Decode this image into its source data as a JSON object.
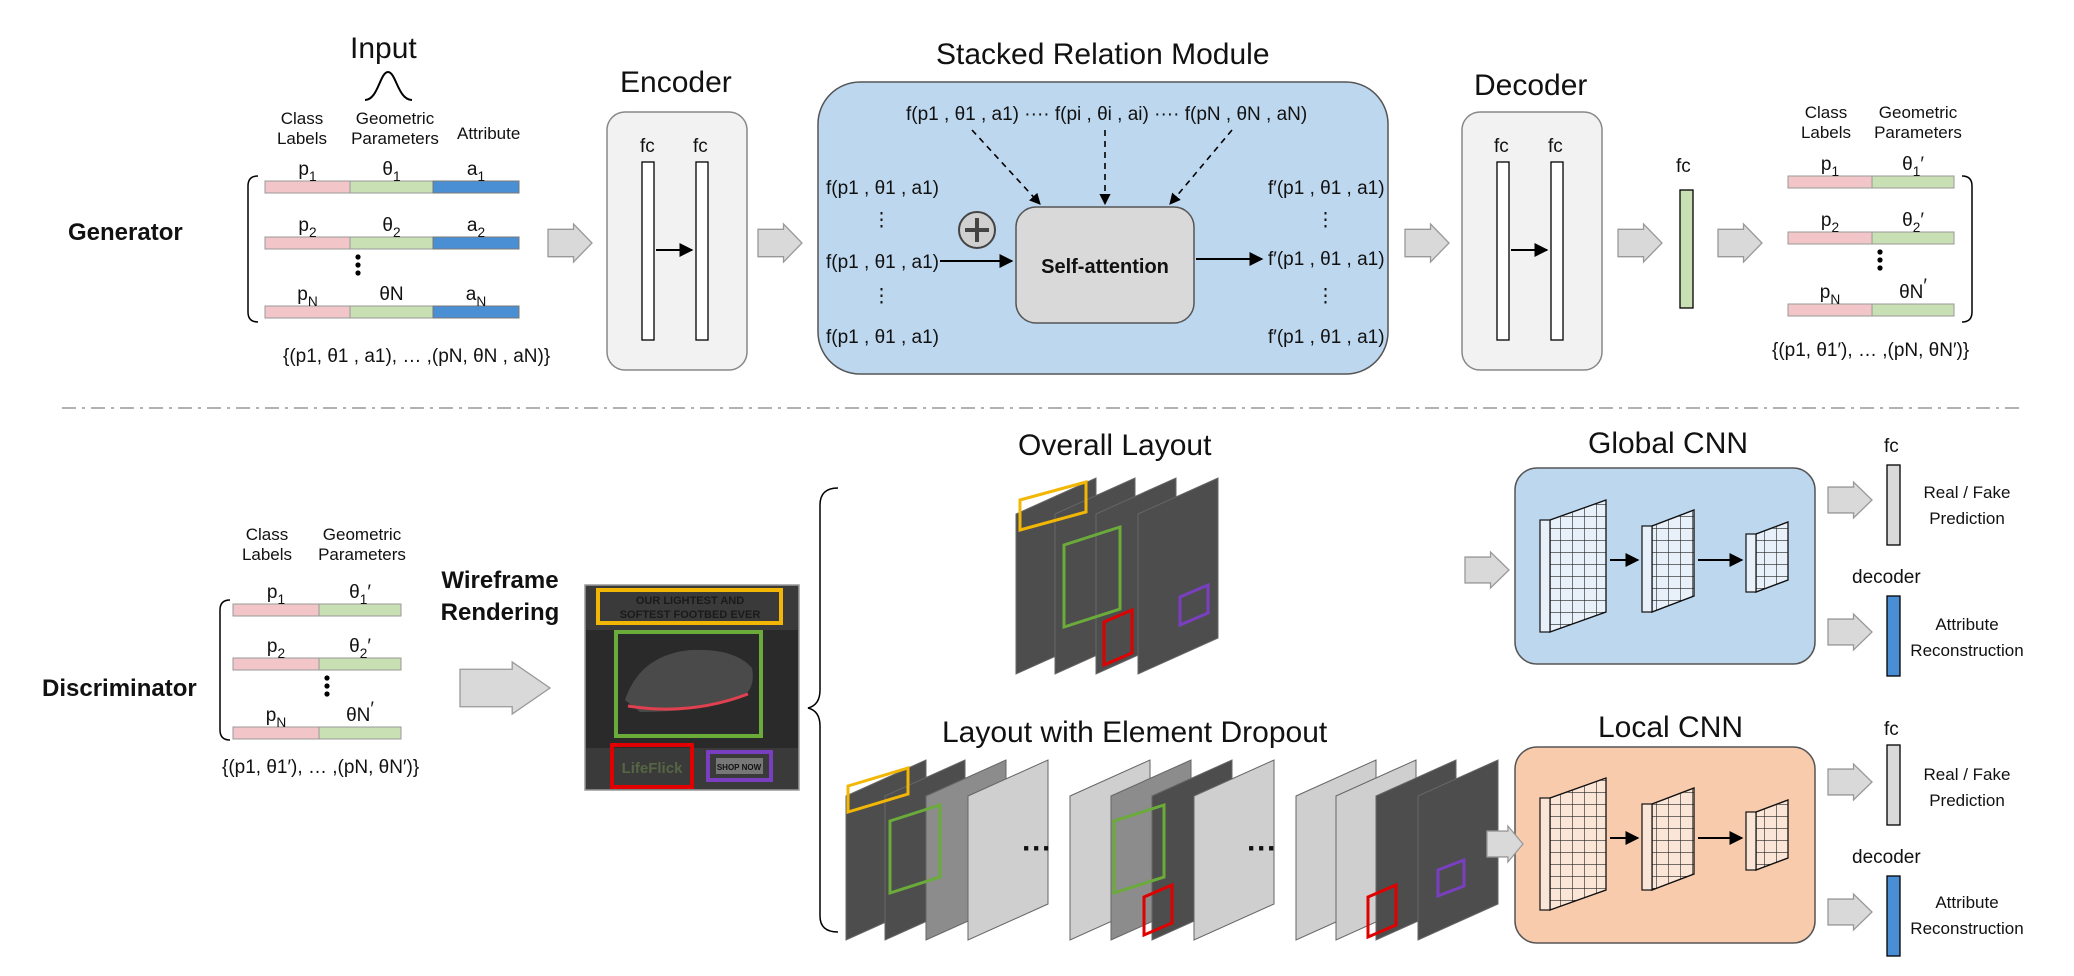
{
  "generator": {
    "label": "Generator",
    "input": {
      "title": "Input",
      "class_labels": "Class\nLabels",
      "geometric_parameters": "Geometric\nParameters",
      "attribute": "Attribute",
      "rows": [
        {
          "p": "p1",
          "theta": "θ1",
          "a": "a1"
        },
        {
          "p": "p2",
          "theta": "θ2",
          "a": "a2"
        },
        {
          "p": "pN",
          "theta": "θN",
          "a": "aN"
        }
      ],
      "set_formula": "{(p1, θ1 , a1), … ,(pN, θN , aN)}"
    },
    "encoder": {
      "title": "Encoder",
      "fc1": "fc",
      "fc2": "fc"
    },
    "relation_module": {
      "title": "Stacked Relation Module",
      "top_row": "f(p1 , θ1 , a1) ···· f(pi , θi , ai) ···· f(pN , θN , aN)",
      "left_items": [
        "f(p1 , θ1 , a1)",
        "f(p1 , θ1 , a1)",
        "f(p1 , θ1 , a1)"
      ],
      "right_items": [
        "f′(p1 , θ1 , a1)",
        "f′(p1 , θ1 , a1)",
        "f′(p1 , θ1 , a1)"
      ],
      "self_attention": "Self-attention"
    },
    "decoder": {
      "title": "Decoder",
      "fc1": "fc",
      "fc2": "fc"
    },
    "fc_label": "fc",
    "output": {
      "class_labels": "Class\nLabels",
      "geometric_parameters": "Geometric\nParameters",
      "rows": [
        {
          "p": "p1",
          "theta": "θ1′"
        },
        {
          "p": "p2",
          "theta": "θ2′"
        },
        {
          "p": "pN",
          "theta": "θN′"
        }
      ],
      "set_formula": "{(p1, θ1′), … ,(pN, θN′)}"
    }
  },
  "discriminator": {
    "label": "Discriminator",
    "input": {
      "class_labels": "Class\nLabels",
      "geometric_parameters": "Geometric\nParameters",
      "rows": [
        {
          "p": "p1",
          "theta": "θ1′"
        },
        {
          "p": "p2",
          "theta": "θ2′"
        },
        {
          "p": "pN",
          "theta": "θN′"
        }
      ],
      "set_formula": "{(p1, θ1′), … ,(pN, θN′)}"
    },
    "wireframe_rendering": "Wireframe\nRendering",
    "ad_image": {
      "headline": "OUR LIGHTEST AND\nSOFTEST FOOTBED EVER",
      "logo": "LifeFlick",
      "cta": "SHOP NOW"
    },
    "overall_layout": "Overall Layout",
    "dropout_layout": "Layout with Element Dropout",
    "ellipsis": "···",
    "global_cnn": "Global CNN",
    "local_cnn": "Local CNN",
    "heads": {
      "fc": "fc",
      "decoder": "decoder",
      "real_fake": "Real / Fake\nPrediction",
      "attribute_reconstruction": "Attribute\nReconstruction"
    }
  },
  "colors": {
    "class_label": "#f2c6c8",
    "geometric": "#c8e0b4",
    "attribute": "#4a8fd4",
    "module_blue": "#bdd7ee",
    "module_orange": "#f8cbad",
    "box_gray": "#f2f2f2",
    "arrow_gray": "#d9d9d9",
    "yellow": "#f2b705",
    "green": "#6aab3a",
    "red": "#e00000",
    "purple": "#7a3fc0"
  }
}
